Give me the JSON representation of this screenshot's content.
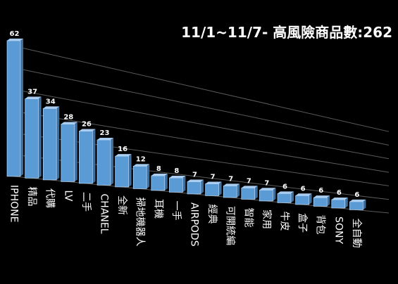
{
  "chart_data": {
    "type": "bar",
    "title": "11/1~11/7- 高風險商品數:262",
    "categories": [
      "IPHONE",
      "精品",
      "代購",
      "LV",
      "二手",
      "CHANEL",
      "全新",
      "掃地機器人",
      "耳機",
      "一手",
      "AIRPODS",
      "經典",
      "可開統編",
      "智能",
      "家用",
      "牛皮",
      "盒子",
      "背包",
      "SONY",
      "全自動"
    ],
    "values": [
      62,
      37,
      34,
      28,
      26,
      23,
      16,
      12,
      8,
      8,
      7,
      7,
      7,
      7,
      7,
      6,
      6,
      6,
      6,
      6
    ],
    "value_labels": [
      "62",
      "37",
      "34",
      "28",
      "26",
      "23",
      "16",
      "12",
      "8",
      "8",
      "7",
      "7",
      "7",
      "7",
      "7",
      "6",
      "6",
      "6",
      "6",
      "6"
    ],
    "ylim": [
      0,
      62
    ],
    "grid": true,
    "legend": "none",
    "xlabel": "",
    "ylabel": ""
  },
  "colors": {
    "background": "#000000",
    "bar_front": "#5b9bd5",
    "bar_side": "#3a6fa3",
    "bar_top": "#a9cdf0",
    "grid": "#5a5a5a",
    "text": "#ffffff"
  }
}
